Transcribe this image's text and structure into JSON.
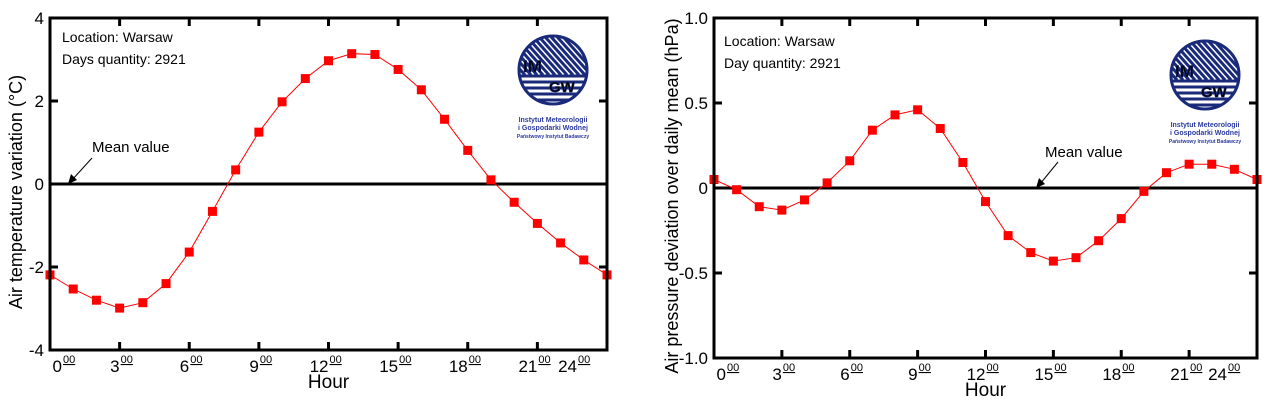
{
  "chart_data": [
    {
      "type": "line",
      "ylabel": "Air temperature variation (°C)",
      "xlabel": "Hour",
      "ylim": [
        -4,
        4
      ],
      "xlim": [
        0,
        24
      ],
      "yticks": [
        "-4",
        "-2",
        "0",
        "2",
        "4"
      ],
      "ytick_values": [
        -4,
        -2,
        0,
        2,
        4
      ],
      "xticks": [
        {
          "v": 0,
          "main": "0",
          "sup": "00"
        },
        {
          "v": 3,
          "main": "3",
          "sup": "00"
        },
        {
          "v": 6,
          "main": "6",
          "sup": "00"
        },
        {
          "v": 9,
          "main": "9",
          "sup": "00"
        },
        {
          "v": 12,
          "main": "12",
          "sup": "00"
        },
        {
          "v": 15,
          "main": "15",
          "sup": "00"
        },
        {
          "v": 18,
          "main": "18",
          "sup": "00"
        },
        {
          "v": 21,
          "main": "21",
          "sup": "00"
        },
        {
          "v": 24,
          "main": "24",
          "sup": "00"
        }
      ],
      "annotation_lines": [
        "Location: Warsaw",
        "Days quantity: 2921"
      ],
      "mean_label": "Mean value",
      "series": [
        {
          "name": "temperature",
          "color": "#ff0000",
          "x": [
            0,
            1,
            2,
            3,
            4,
            5,
            6,
            7,
            8,
            9,
            10,
            11,
            12,
            13,
            14,
            15,
            16,
            17,
            18,
            19,
            20,
            21,
            22,
            23,
            24
          ],
          "values": [
            -2.19,
            -2.53,
            -2.8,
            -2.99,
            -2.86,
            -2.4,
            -1.64,
            -0.66,
            0.34,
            1.25,
            1.98,
            2.54,
            2.97,
            3.14,
            3.12,
            2.76,
            2.27,
            1.56,
            0.81,
            0.1,
            -0.44,
            -0.95,
            -1.42,
            -1.83,
            -2.19
          ]
        }
      ],
      "logo": {
        "text": [
          "IM",
          "GW"
        ],
        "caption": [
          "Instytut Meteorologii",
          "i Gospodarki Wodnej",
          "Państwowy Instytut Badawczy"
        ]
      }
    },
    {
      "type": "line",
      "ylabel": "Air pressure deviation over daily mean (hPa)",
      "xlabel": "Hour",
      "ylim": [
        -1.0,
        1.0
      ],
      "xlim": [
        0,
        24
      ],
      "yticks": [
        "-1.0",
        "-0.5",
        "0",
        "0.5",
        "1.0"
      ],
      "ytick_values": [
        -1.0,
        -0.5,
        0,
        0.5,
        1.0
      ],
      "xticks": [
        {
          "v": 0,
          "main": "0",
          "sup": "00"
        },
        {
          "v": 3,
          "main": "3",
          "sup": "00"
        },
        {
          "v": 6,
          "main": "6",
          "sup": "00"
        },
        {
          "v": 9,
          "main": "9",
          "sup": "00"
        },
        {
          "v": 12,
          "main": "12",
          "sup": "00"
        },
        {
          "v": 15,
          "main": "15",
          "sup": "00"
        },
        {
          "v": 18,
          "main": "18",
          "sup": "00"
        },
        {
          "v": 21,
          "main": "21",
          "sup": "00"
        },
        {
          "v": 24,
          "main": "24",
          "sup": "00"
        }
      ],
      "annotation_lines": [
        "Location: Warsaw",
        "Day quantity: 2921"
      ],
      "mean_label": "Mean value",
      "series": [
        {
          "name": "pressure",
          "color": "#ff0000",
          "x": [
            0,
            1,
            2,
            3,
            4,
            5,
            6,
            7,
            8,
            9,
            10,
            11,
            12,
            13,
            14,
            15,
            16,
            17,
            18,
            19,
            20,
            21,
            22,
            23,
            24
          ],
          "values": [
            0.05,
            -0.01,
            -0.11,
            -0.13,
            -0.07,
            0.03,
            0.16,
            0.34,
            0.43,
            0.46,
            0.35,
            0.15,
            -0.08,
            -0.28,
            -0.38,
            -0.43,
            -0.41,
            -0.31,
            -0.18,
            -0.02,
            0.09,
            0.14,
            0.14,
            0.11,
            0.05
          ]
        }
      ],
      "logo": {
        "text": [
          "IM",
          "GW"
        ],
        "caption": [
          "Instytut Meteorologii",
          "i Gospodarki Wodnej",
          "Państwowy Instytut Badawczy"
        ]
      }
    }
  ]
}
